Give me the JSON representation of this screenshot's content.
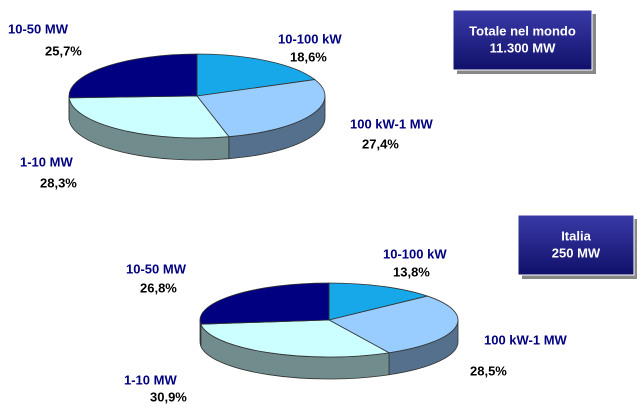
{
  "chart_data": [
    {
      "type": "pie",
      "title": "Totale nel mondo",
      "subtitle": "11.300 MW",
      "categories": [
        "10-100 kW",
        "100 kW-1 MW",
        "1-10 MW",
        "10-50 MW"
      ],
      "values": [
        18.6,
        27.4,
        28.3,
        25.7
      ],
      "value_labels": [
        "18,6%",
        "27,4%",
        "28,3%",
        "25,7%"
      ],
      "colors": [
        "#16a8e8",
        "#99ccff",
        "#ccffff",
        "#000080"
      ]
    },
    {
      "type": "pie",
      "title": "Italia",
      "subtitle": "250 MW",
      "categories": [
        "10-100 kW",
        "100 kW-1 MW",
        "1-10 MW",
        "10-50 MW"
      ],
      "values": [
        13.8,
        28.5,
        30.9,
        26.8
      ],
      "value_labels": [
        "13,8%",
        "28,5%",
        "30,9%",
        "26,8%"
      ],
      "colors": [
        "#16a8e8",
        "#99ccff",
        "#ccffff",
        "#000080"
      ]
    }
  ]
}
